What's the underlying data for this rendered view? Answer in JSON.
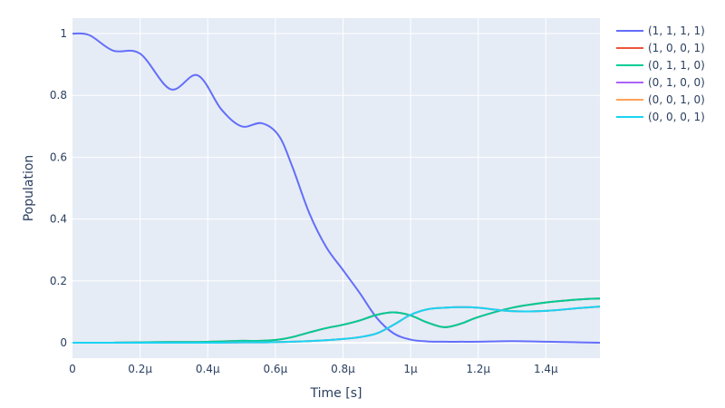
{
  "chart_data": {
    "type": "line",
    "title": "",
    "xlabel": "Time [s]",
    "ylabel": "Population",
    "xlim": [
      0,
      1.56e-06
    ],
    "ylim": [
      -0.05,
      1.05
    ],
    "grid": true,
    "legend_position": "right",
    "x_ticks": [
      {
        "value": 0,
        "label": "0"
      },
      {
        "value": 2e-07,
        "label": "0.2μ"
      },
      {
        "value": 4e-07,
        "label": "0.4μ"
      },
      {
        "value": 6e-07,
        "label": "0.6μ"
      },
      {
        "value": 8e-07,
        "label": "0.8μ"
      },
      {
        "value": 1e-06,
        "label": "1μ"
      },
      {
        "value": 1.2e-06,
        "label": "1.2μ"
      },
      {
        "value": 1.4e-06,
        "label": "1.4μ"
      }
    ],
    "y_ticks": [
      {
        "value": 0,
        "label": "0"
      },
      {
        "value": 0.2,
        "label": "0.2"
      },
      {
        "value": 0.4,
        "label": "0.4"
      },
      {
        "value": 0.6,
        "label": "0.6"
      },
      {
        "value": 0.8,
        "label": "0.8"
      },
      {
        "value": 1,
        "label": "1"
      }
    ],
    "x": [
      0,
      5e-08,
      1.2e-07,
      2e-07,
      2.9e-07,
      3.7e-07,
      4.4e-07,
      5e-07,
      5.6e-07,
      6.1e-07,
      6.5e-07,
      7e-07,
      7.5e-07,
      8e-07,
      8.5e-07,
      9e-07,
      9.5e-07,
      1e-06,
      1.05e-06,
      1.1e-06,
      1.15e-06,
      1.2e-06,
      1.3e-06,
      1.4e-06,
      1.5e-06,
      1.56e-06
    ],
    "series": [
      {
        "name": "(1, 1, 1, 1)",
        "color": "#636efa",
        "values": [
          1.0,
          0.995,
          0.945,
          0.935,
          0.82,
          0.865,
          0.755,
          0.7,
          0.71,
          0.67,
          0.57,
          0.42,
          0.31,
          0.235,
          0.16,
          0.08,
          0.03,
          0.01,
          0.004,
          0.003,
          0.003,
          0.003,
          0.005,
          0.003,
          0.001,
          0.0
        ]
      },
      {
        "name": "(1, 0, 0, 1)",
        "color": "#ef553b",
        "values": [
          0.0,
          0.0,
          0.0,
          0.001,
          0.002,
          0.002,
          0.004,
          0.006,
          0.006,
          0.01,
          0.018,
          0.033,
          0.047,
          0.058,
          0.072,
          0.09,
          0.098,
          0.088,
          0.065,
          0.05,
          0.062,
          0.083,
          0.113,
          0.13,
          0.14,
          0.143
        ]
      },
      {
        "name": "(0, 1, 1, 0)",
        "color": "#00cc96",
        "values": [
          0.0,
          0.0,
          0.0,
          0.001,
          0.002,
          0.002,
          0.004,
          0.006,
          0.006,
          0.01,
          0.018,
          0.033,
          0.047,
          0.058,
          0.072,
          0.09,
          0.098,
          0.088,
          0.065,
          0.05,
          0.062,
          0.083,
          0.113,
          0.13,
          0.14,
          0.143
        ]
      },
      {
        "name": "(0, 1, 0, 0)",
        "color": "#ab63fa",
        "values": [
          0.0,
          0.0,
          0.0,
          0.0,
          0.0,
          0.0,
          0.0,
          0.001,
          0.001,
          0.002,
          0.003,
          0.005,
          0.008,
          0.012,
          0.018,
          0.03,
          0.058,
          0.09,
          0.108,
          0.113,
          0.115,
          0.113,
          0.102,
          0.103,
          0.112,
          0.117
        ]
      },
      {
        "name": "(0, 0, 1, 0)",
        "color": "#ffa15a",
        "values": [
          0.0,
          0.0,
          0.0,
          0.0,
          0.0,
          0.0,
          0.0,
          0.001,
          0.001,
          0.002,
          0.003,
          0.005,
          0.008,
          0.012,
          0.018,
          0.03,
          0.058,
          0.09,
          0.108,
          0.113,
          0.115,
          0.113,
          0.102,
          0.103,
          0.112,
          0.117
        ]
      },
      {
        "name": "(0, 0, 0, 1)",
        "color": "#19d3f3",
        "values": [
          0.0,
          0.0,
          0.0,
          0.0,
          0.0,
          0.0,
          0.0,
          0.001,
          0.001,
          0.002,
          0.003,
          0.005,
          0.008,
          0.012,
          0.018,
          0.03,
          0.058,
          0.09,
          0.108,
          0.113,
          0.115,
          0.113,
          0.102,
          0.103,
          0.112,
          0.117
        ]
      }
    ]
  },
  "style": {
    "plot_background": "#e5ecf6",
    "grid_color": "#ffffff",
    "text_color": "#2a3f5f"
  }
}
